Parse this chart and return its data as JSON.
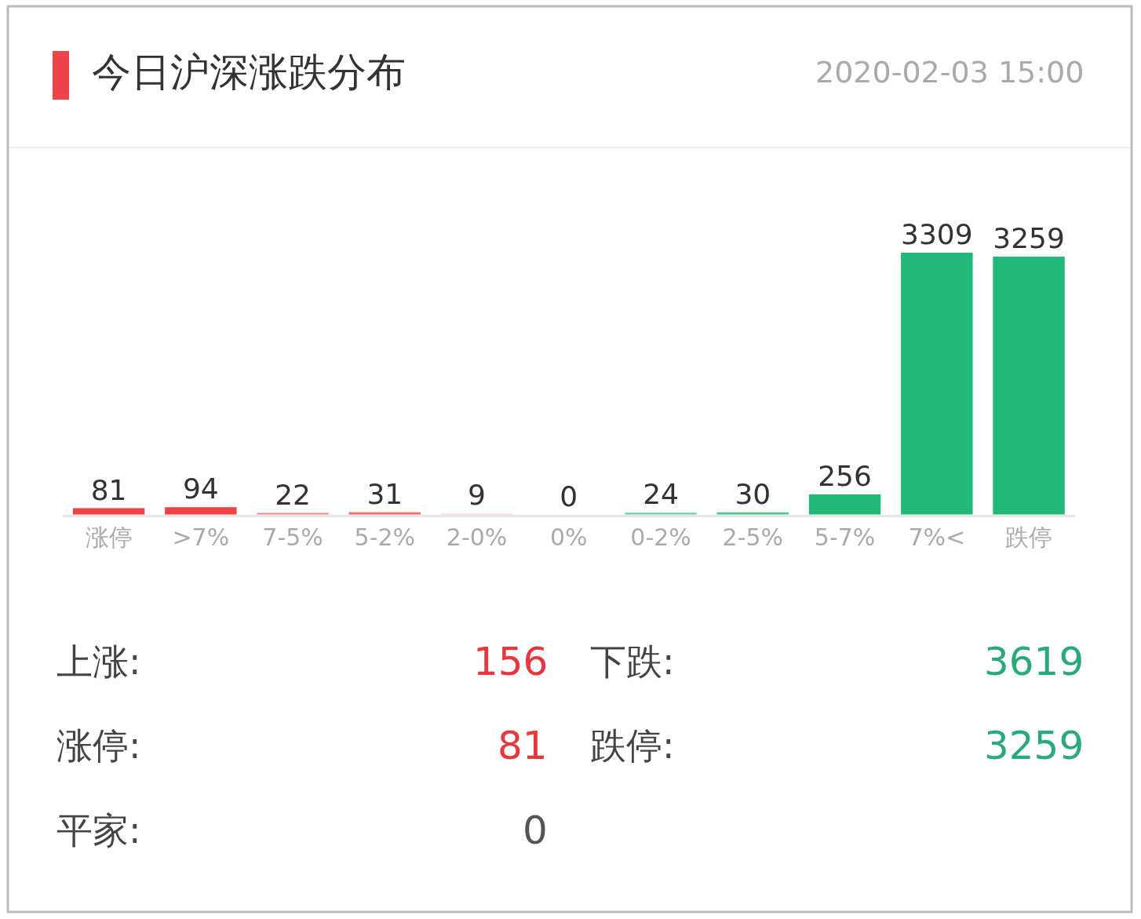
{
  "chart_data": {
    "type": "bar",
    "title": "今日沪深涨跌分布",
    "subtitle": "2020-02-03 15:00",
    "categories": [
      "涨停",
      ">7%",
      "7-5%",
      "5-2%",
      "2-0%",
      "0%",
      "0-2%",
      "2-5%",
      "5-7%",
      "7%<",
      "跌停"
    ],
    "values": [
      81,
      94,
      22,
      31,
      9,
      0,
      24,
      30,
      256,
      3309,
      3259
    ],
    "colors": [
      "#ee4349",
      "#ee4349",
      "#f58a8e",
      "#f26a6f",
      "#f9d6d7",
      "#cccccc",
      "#6ccfa7",
      "#4fc797",
      "#22b878",
      "#22b878",
      "#22b878"
    ],
    "data_labels": true,
    "legend": false,
    "annotations": [
      "上涨:",
      "156",
      "下跌:",
      "3619",
      "涨停:",
      "81",
      "跌停:",
      "3259",
      "平家:",
      "0"
    ]
  }
}
